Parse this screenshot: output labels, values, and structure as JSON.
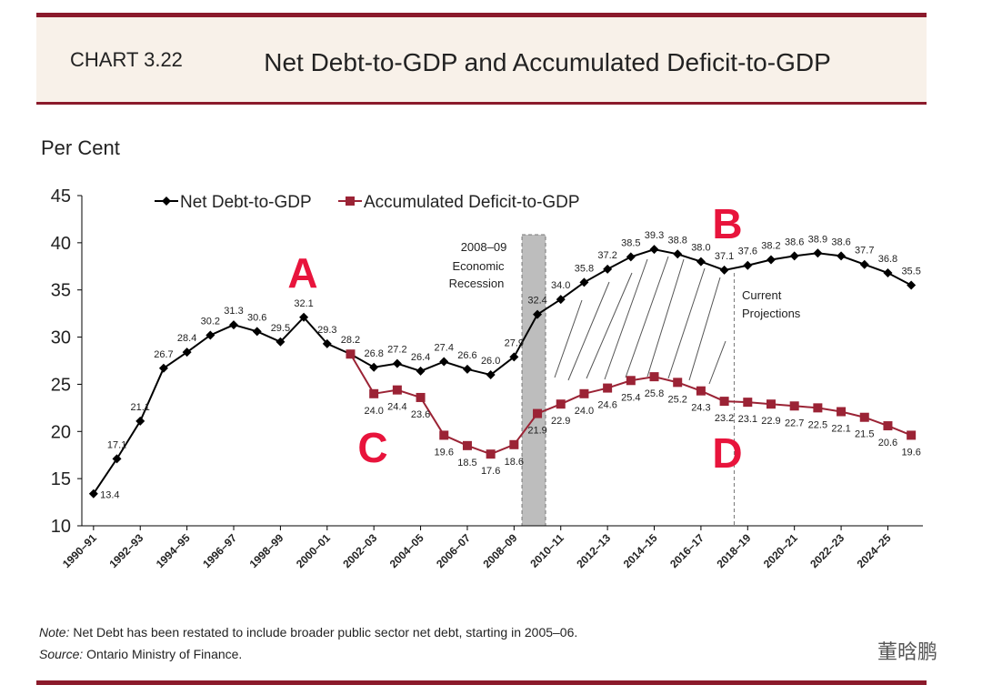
{
  "header": {
    "chart_number": "CHART 3.22"
  },
  "chart_data": {
    "type": "line",
    "title": "Net Debt-to-GDP and Accumulated Deficit-to-GDP",
    "y_label": "Per Cent",
    "categories": [
      "1990–91",
      null,
      "1992–93",
      null,
      "1994–95",
      null,
      "1996–97",
      null,
      "1998–99",
      null,
      "2000–01",
      null,
      "2002–03",
      null,
      "2004–05",
      null,
      "2006–07",
      null,
      "2008–09",
      null,
      "2010–11",
      null,
      "2012–13",
      null,
      "2014–15",
      null,
      "2016–17",
      null,
      "2018–19",
      null,
      "2020–21",
      null,
      "2022–23",
      null,
      "2024–25",
      null
    ],
    "series": [
      {
        "name": "Net Debt-to-GDP",
        "color": "#000000",
        "values": [
          13.4,
          17.1,
          21.1,
          26.7,
          28.4,
          30.2,
          31.3,
          30.6,
          29.5,
          32.1,
          29.3,
          28.2,
          26.8,
          27.2,
          26.4,
          27.4,
          26.6,
          26.0,
          27.9,
          32.4,
          34.0,
          35.8,
          37.2,
          38.5,
          39.3,
          38.8,
          38.0,
          37.1,
          37.6,
          38.2,
          38.6,
          38.9,
          38.6,
          37.7,
          36.8,
          35.5
        ],
        "value_labels": [
          "13.4",
          "17.1",
          "21.1",
          "26.7",
          "28.4",
          "30.2",
          "31.3",
          "30.6",
          "29.5",
          "32.1",
          "29.3",
          "28.2",
          "26.8",
          "27.2",
          "26.4",
          "27.4",
          "26.6",
          "26.0",
          "27.9",
          "32.4",
          "34.0",
          "35.8",
          "37.2",
          "38.5",
          "39.3",
          "38.8",
          "38.0",
          "37.1",
          "37.6",
          "38.2",
          "38.6",
          "38.9",
          "38.6",
          "37.7",
          "36.8",
          "35.5"
        ]
      },
      {
        "name": "Accumulated Deficit-to-GDP",
        "color": "#9b2335",
        "values": [
          null,
          null,
          null,
          null,
          null,
          null,
          null,
          null,
          null,
          null,
          null,
          28.2,
          24.0,
          24.4,
          23.6,
          19.6,
          18.5,
          17.6,
          18.6,
          21.9,
          22.9,
          24.0,
          24.6,
          25.4,
          25.8,
          25.2,
          24.3,
          23.2,
          23.1,
          22.9,
          22.7,
          22.5,
          22.1,
          21.5,
          20.6,
          19.6
        ],
        "value_labels": [
          null,
          null,
          null,
          null,
          null,
          null,
          null,
          null,
          null,
          null,
          null,
          null,
          "24.0",
          "24.4",
          "23.6",
          "19.6",
          "18.5",
          "17.6",
          "18.6",
          "21.9",
          "22.9",
          "24.0",
          "24.6",
          "25.4",
          "25.8",
          "25.2",
          "24.3",
          "23.2",
          "23.1",
          "22.9",
          "22.7",
          "22.5",
          "22.1",
          "21.5",
          "20.6",
          "19.6"
        ]
      }
    ],
    "ylim": [
      10,
      45
    ],
    "yticks": [
      10,
      15,
      20,
      25,
      30,
      35,
      40,
      45
    ],
    "legend": "top",
    "annotations": {
      "recession": "2008–09",
      "recession_2": "Economic",
      "recession_3": "Recession",
      "projections": "Current",
      "projections_2": "Projections",
      "a": "A",
      "b": "B",
      "c": "C",
      "d": "D"
    }
  },
  "footer": {
    "note_label": "Note:",
    "note": " Net Debt has been restated to include broader public sector net debt, starting in 2005–06.",
    "source_label": "Source:",
    "source": " Ontario Ministry of Finance.",
    "watermark": "董晗鹏"
  }
}
